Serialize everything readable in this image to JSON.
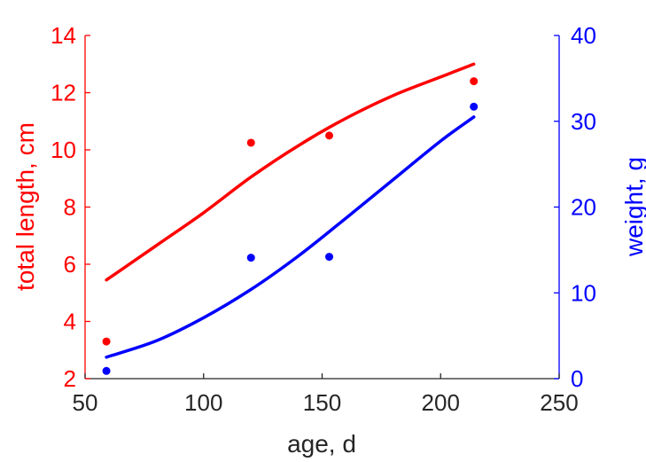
{
  "chart_data": {
    "type": "scatter",
    "xlabel": "age, d",
    "ylabel_left": "total length, cm",
    "ylabel_right": "weight, g",
    "xlim": [
      50,
      250
    ],
    "xticks": [
      50,
      100,
      150,
      200,
      250
    ],
    "ylim_left": [
      2,
      14
    ],
    "yticks_left": [
      2,
      4,
      6,
      8,
      10,
      12,
      14
    ],
    "ylim_right": [
      0,
      40
    ],
    "yticks_right": [
      0,
      10,
      20,
      30,
      40
    ],
    "grid": false,
    "colors": {
      "left": "#ff0000",
      "right": "#0000ff",
      "x_axis": "#262626"
    },
    "series": [
      {
        "axis": "left",
        "color": "#ff0000",
        "points": [
          {
            "x": 59,
            "y": 3.3
          },
          {
            "x": 120,
            "y": 10.25
          },
          {
            "x": 153,
            "y": 10.5
          },
          {
            "x": 214,
            "y": 12.4
          }
        ],
        "fit": [
          {
            "x": 59,
            "y": 5.45
          },
          {
            "x": 80,
            "y": 6.65
          },
          {
            "x": 100,
            "y": 7.8
          },
          {
            "x": 120,
            "y": 9.05
          },
          {
            "x": 140,
            "y": 10.15
          },
          {
            "x": 160,
            "y": 11.1
          },
          {
            "x": 180,
            "y": 11.9
          },
          {
            "x": 200,
            "y": 12.55
          },
          {
            "x": 214,
            "y": 13.0
          }
        ]
      },
      {
        "axis": "right",
        "color": "#0000ff",
        "points": [
          {
            "x": 59,
            "y": 0.9
          },
          {
            "x": 120,
            "y": 14.1
          },
          {
            "x": 153,
            "y": 14.2
          },
          {
            "x": 214,
            "y": 31.7
          }
        ],
        "fit": [
          {
            "x": 59,
            "y": 2.5
          },
          {
            "x": 80,
            "y": 4.4
          },
          {
            "x": 100,
            "y": 7.1
          },
          {
            "x": 120,
            "y": 10.4
          },
          {
            "x": 140,
            "y": 14.3
          },
          {
            "x": 160,
            "y": 18.7
          },
          {
            "x": 180,
            "y": 23.2
          },
          {
            "x": 200,
            "y": 27.7
          },
          {
            "x": 214,
            "y": 30.5
          }
        ]
      }
    ]
  }
}
